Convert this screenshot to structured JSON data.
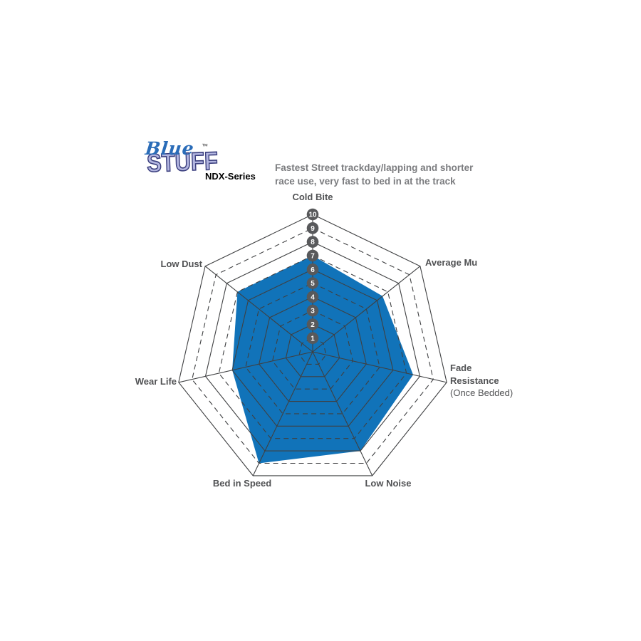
{
  "header": {
    "logo": {
      "line1": "Blue",
      "line2": "STUFF",
      "trademark": "™"
    },
    "series_name": "NDX-Series",
    "description_line1": "Fastest Street trackday/lapping and shorter",
    "description_line2": "race use, very fast to bed in at the track"
  },
  "chart_data": {
    "type": "radar",
    "axes": [
      {
        "label": "Cold Bite",
        "value": 7
      },
      {
        "label": "Average Mu",
        "value": 6.5
      },
      {
        "label": "Fade Resistance",
        "sublabel": "(Once Bedded)",
        "value": 7.5
      },
      {
        "label": "Low Noise",
        "value": 8
      },
      {
        "label": "Bed in Speed",
        "value": 9
      },
      {
        "label": "Wear Life",
        "value": 6
      },
      {
        "label": "Low Dust",
        "value": 7
      }
    ],
    "scale": {
      "min": 1,
      "max": 10,
      "tick_labels": [
        "1",
        "2",
        "3",
        "4",
        "5",
        "6",
        "7",
        "8",
        "9",
        "10"
      ]
    },
    "grid": {
      "spokes": 7,
      "even_rings": "solid",
      "odd_rings": "dashed",
      "legend": "none"
    },
    "colors": {
      "fill": "#1173B9",
      "grid": "#3f4042",
      "tick_badge": "#58595B",
      "tick_text": "#FFFFFF",
      "label": "#515254"
    }
  }
}
